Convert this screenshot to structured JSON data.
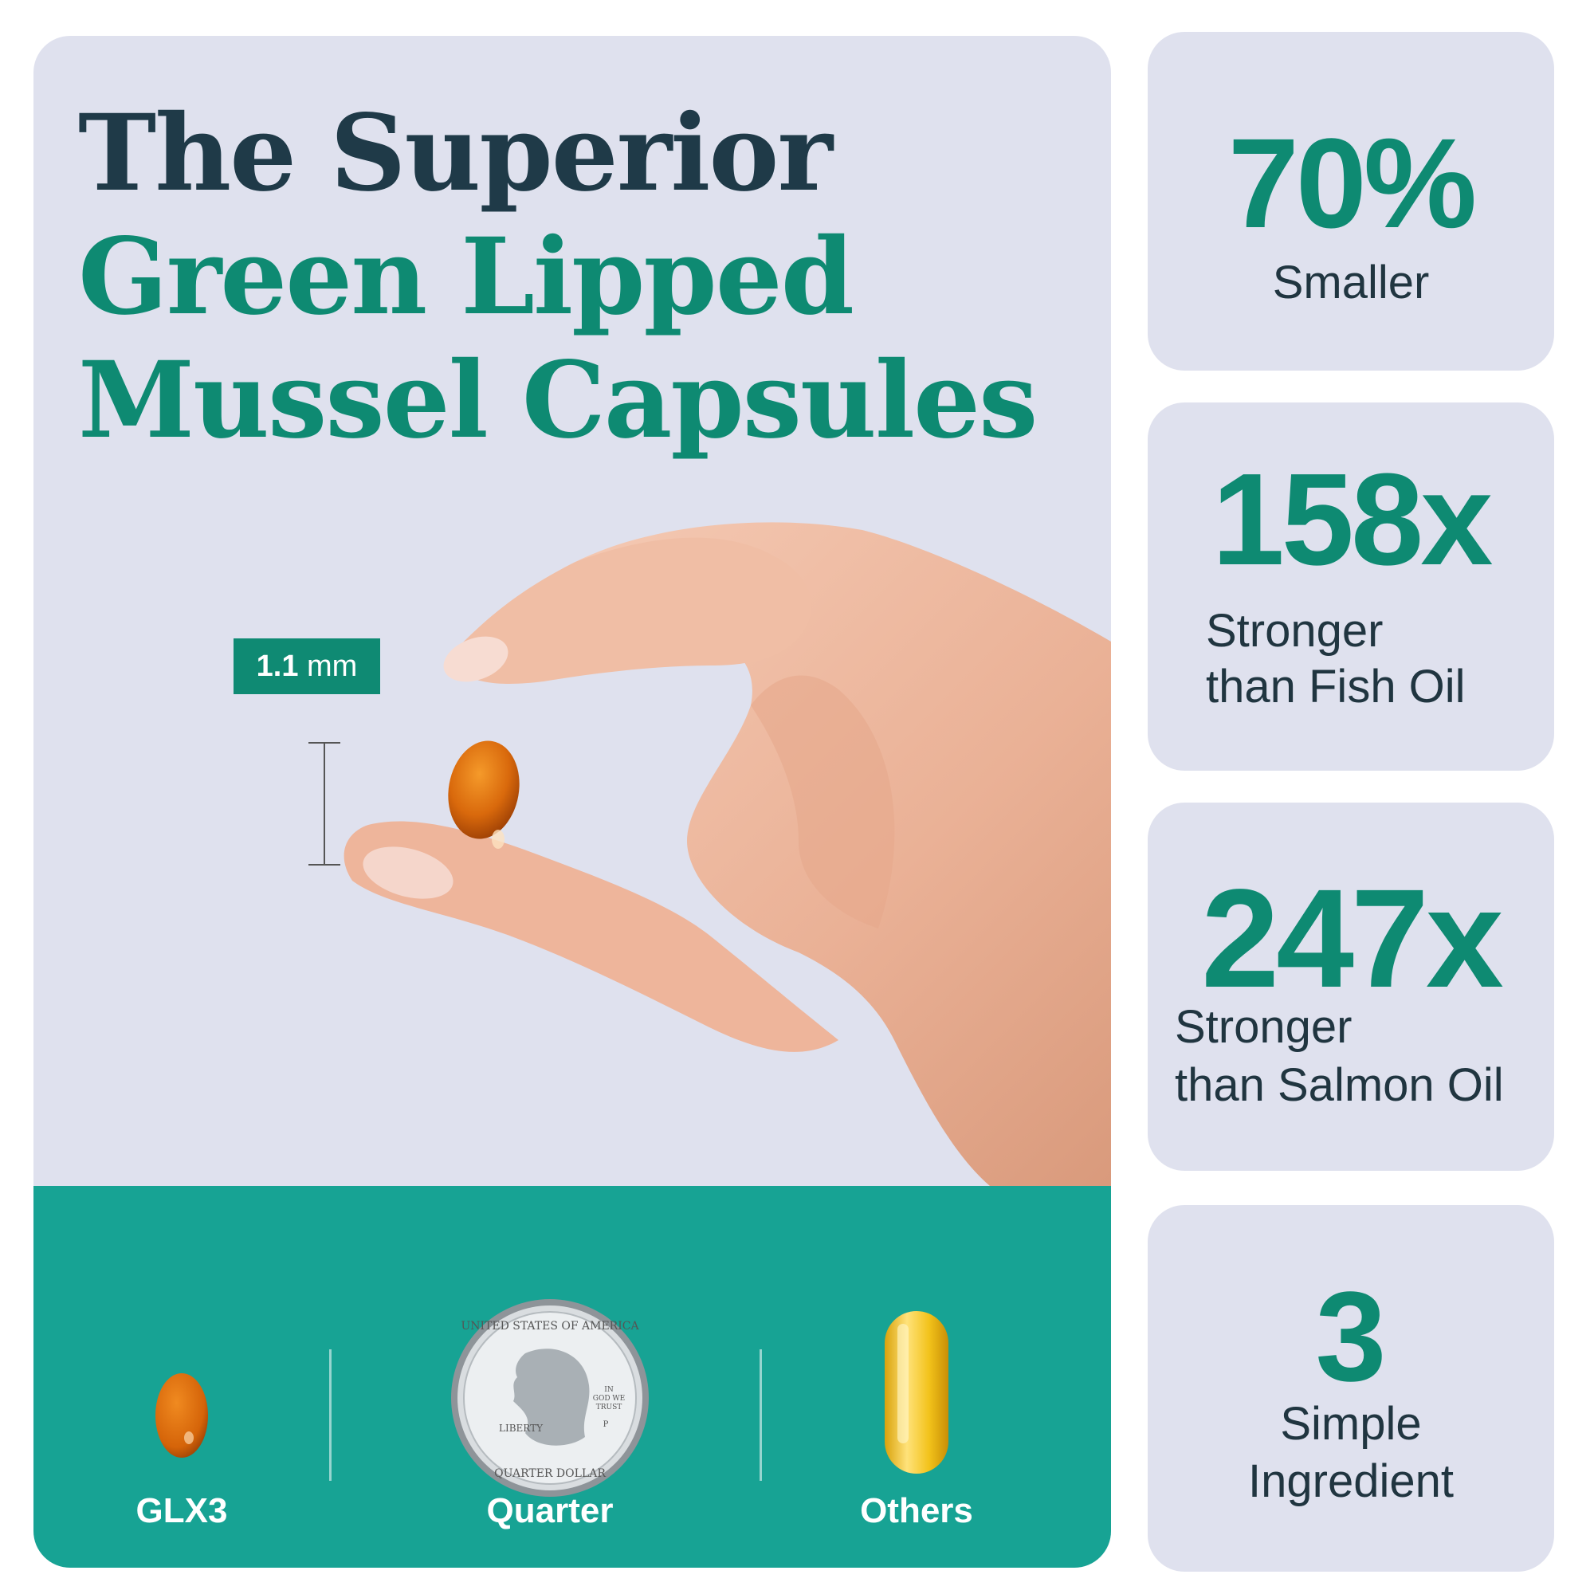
{
  "headline": {
    "line1": "The Superior",
    "line2": "Green Lipped",
    "line3": "Mussel Capsules"
  },
  "measure": {
    "value": "1.1",
    "unit": "mm"
  },
  "comparison": {
    "items": [
      {
        "label": "GLX3"
      },
      {
        "label": "Quarter"
      },
      {
        "label": "Others"
      }
    ],
    "quarter_text": {
      "rim_top": "UNITED STATES OF AMERICA",
      "liberty": "LIBERTY",
      "motto_1": "IN",
      "motto_2": "GOD WE",
      "motto_3": "TRUST",
      "mint": "P",
      "rim_bottom": "QUARTER DOLLAR"
    }
  },
  "stats": [
    {
      "value": "70%",
      "label_line1": "Smaller",
      "label_line2": ""
    },
    {
      "value": "158x",
      "label_line1": "Stronger",
      "label_line2": "than Fish Oil"
    },
    {
      "value": "247x",
      "label_line1": "Stronger",
      "label_line2": "than Salmon Oil"
    },
    {
      "value": "3",
      "label_line1": "Simple",
      "label_line2": "Ingredient"
    }
  ],
  "colors": {
    "panel_bg": "#dfe1ee",
    "headline_dark": "#1f3a48",
    "brand_green": "#0e8a72",
    "band_teal": "#17a394",
    "capsule_amber": "#d9690c",
    "capsule_yellow": "#f2c21a"
  }
}
